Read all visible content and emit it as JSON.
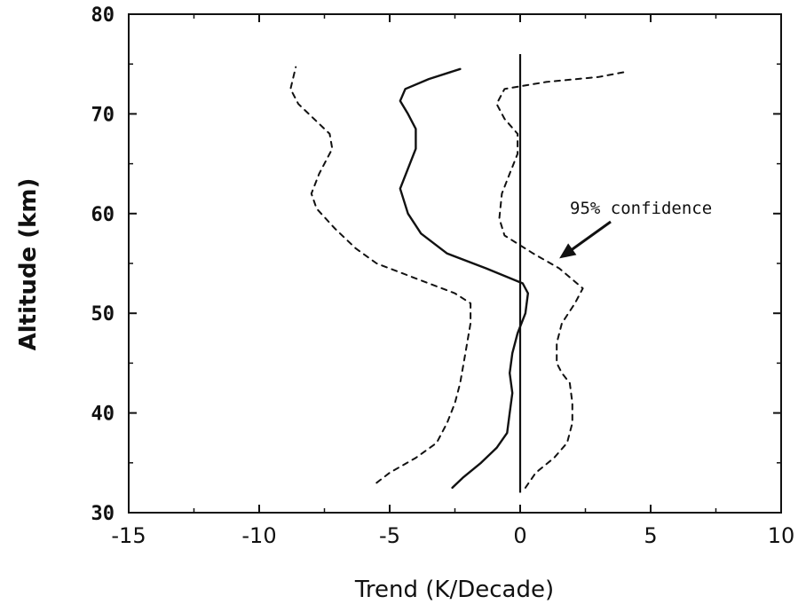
{
  "chart_data": {
    "type": "line",
    "title": "",
    "xlabel": "Trend (K/Decade)",
    "ylabel": "Altitude (km)",
    "xlim": [
      -15,
      10
    ],
    "ylim": [
      30,
      80
    ],
    "x_ticks": [
      -15,
      -10,
      -5,
      0,
      5,
      10
    ],
    "y_ticks": [
      30,
      40,
      50,
      60,
      70,
      80
    ],
    "x_tick_labels": [
      "-15",
      "-10",
      "-5",
      "0",
      "5",
      "10"
    ],
    "y_tick_labels": [
      "30",
      "40",
      "50",
      "60",
      "70",
      "80"
    ],
    "grid": false,
    "legend": "none",
    "annotation": {
      "text": "95% confidence",
      "arrow_to": {
        "x": 1.5,
        "y": 55.5
      }
    },
    "reference_line": {
      "x": 0,
      "y_range": [
        32,
        76
      ]
    },
    "series": [
      {
        "style": "solid",
        "points": [
          [
            -2.6,
            32.5
          ],
          [
            -2.2,
            33.5
          ],
          [
            -1.5,
            35
          ],
          [
            -0.9,
            36.5
          ],
          [
            -0.5,
            38
          ],
          [
            -0.4,
            40
          ],
          [
            -0.3,
            42
          ],
          [
            -0.4,
            44
          ],
          [
            -0.3,
            46
          ],
          [
            -0.1,
            48
          ],
          [
            0.2,
            50
          ],
          [
            0.3,
            52
          ],
          [
            0.1,
            53
          ],
          [
            -1.3,
            54.5
          ],
          [
            -2.8,
            56
          ],
          [
            -3.8,
            58
          ],
          [
            -4.3,
            60
          ],
          [
            -4.6,
            62.5
          ],
          [
            -4.3,
            64.5
          ],
          [
            -4.0,
            66.5
          ],
          [
            -4.0,
            68.5
          ],
          [
            -4.3,
            70
          ],
          [
            -4.6,
            71.3
          ],
          [
            -4.4,
            72.5
          ],
          [
            -3.5,
            73.5
          ],
          [
            -2.3,
            74.5
          ]
        ]
      },
      {
        "style": "dashed",
        "points": [
          [
            -5.5,
            33
          ],
          [
            -5.0,
            34
          ],
          [
            -4.0,
            35.5
          ],
          [
            -3.2,
            37
          ],
          [
            -2.8,
            39
          ],
          [
            -2.5,
            41
          ],
          [
            -2.3,
            43
          ],
          [
            -2.1,
            46
          ],
          [
            -1.9,
            49
          ],
          [
            -1.9,
            51
          ],
          [
            -2.5,
            52
          ],
          [
            -4.0,
            53.5
          ],
          [
            -5.5,
            55
          ],
          [
            -6.3,
            56.5
          ],
          [
            -7.1,
            58.5
          ],
          [
            -7.8,
            60.5
          ],
          [
            -8.0,
            62
          ],
          [
            -7.7,
            64
          ],
          [
            -7.2,
            66.5
          ],
          [
            -7.3,
            68
          ],
          [
            -7.9,
            69.5
          ],
          [
            -8.5,
            71
          ],
          [
            -8.8,
            72.5
          ],
          [
            -8.6,
            74.7
          ]
        ]
      },
      {
        "style": "dashed",
        "points": [
          [
            0.2,
            32.5
          ],
          [
            0.6,
            34
          ],
          [
            1.3,
            35.5
          ],
          [
            1.8,
            37
          ],
          [
            2.0,
            39
          ],
          [
            2.0,
            41
          ],
          [
            1.9,
            43
          ],
          [
            1.6,
            44
          ],
          [
            1.4,
            45
          ],
          [
            1.4,
            47
          ],
          [
            1.6,
            49
          ],
          [
            2.1,
            51
          ],
          [
            2.4,
            52.5
          ],
          [
            1.5,
            54.5
          ],
          [
            0.5,
            56
          ],
          [
            -0.6,
            57.8
          ],
          [
            -0.8,
            59.5
          ],
          [
            -0.7,
            62
          ],
          [
            -0.4,
            64
          ],
          [
            -0.1,
            66
          ],
          [
            -0.1,
            68
          ],
          [
            -0.6,
            69.5
          ],
          [
            -0.9,
            71
          ],
          [
            -0.6,
            72.5
          ],
          [
            1.0,
            73.2
          ],
          [
            3.0,
            73.7
          ],
          [
            4.0,
            74.2
          ]
        ]
      }
    ]
  }
}
